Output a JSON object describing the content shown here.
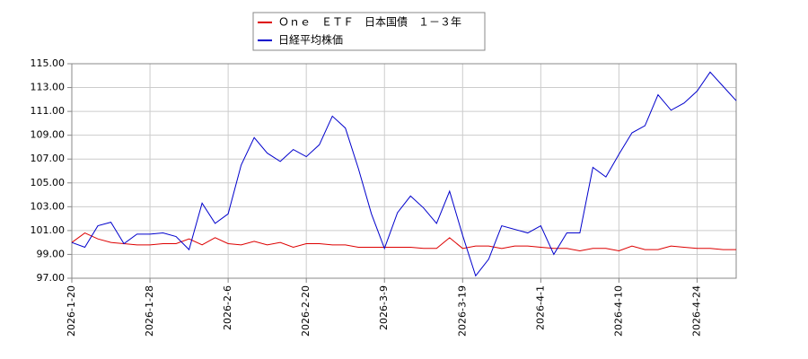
{
  "chart_data": {
    "type": "line",
    "categories": [
      "2026-1-20",
      null,
      null,
      null,
      null,
      null,
      "2026-1-28",
      null,
      null,
      null,
      null,
      null,
      "2026-2-6",
      null,
      null,
      null,
      null,
      null,
      "2026-2-20",
      null,
      null,
      null,
      null,
      null,
      "2026-3-9",
      null,
      null,
      null,
      null,
      null,
      "2026-3-19",
      null,
      null,
      null,
      null,
      null,
      "2026-4-1",
      null,
      null,
      null,
      null,
      null,
      "2026-4-10",
      null,
      null,
      null,
      null,
      null,
      "2026-4-24",
      null,
      null,
      null
    ],
    "series": [
      {
        "name": "Ｏｎｅ　ＥＴＦ　日本国債　１－３年",
        "color": "#dd0000",
        "values": [
          100.0,
          100.8,
          100.3,
          100.0,
          99.9,
          99.8,
          99.8,
          99.9,
          99.9,
          100.3,
          99.8,
          100.4,
          99.9,
          99.8,
          100.1,
          99.8,
          100.0,
          99.6,
          99.9,
          99.9,
          99.8,
          99.8,
          99.6,
          99.6,
          99.6,
          99.6,
          99.6,
          99.5,
          99.5,
          100.4,
          99.5,
          99.7,
          99.7,
          99.5,
          99.7,
          99.7,
          99.6,
          99.5,
          99.5,
          99.3,
          99.5,
          99.5,
          99.3,
          99.7,
          99.4,
          99.4,
          99.7,
          99.6,
          99.5,
          99.5,
          99.4,
          99.4
        ]
      },
      {
        "name": "日経平均株価",
        "color": "#0000cc",
        "values": [
          100.0,
          99.6,
          101.4,
          101.7,
          99.9,
          100.7,
          100.7,
          100.8,
          100.5,
          99.4,
          103.3,
          101.6,
          102.4,
          106.5,
          108.8,
          107.5,
          106.8,
          107.8,
          107.2,
          108.2,
          110.6,
          109.6,
          106.2,
          102.4,
          99.5,
          102.5,
          103.9,
          102.9,
          101.6,
          104.3,
          100.6,
          97.2,
          98.6,
          101.4,
          101.1,
          100.8,
          101.4,
          99.0,
          100.8,
          100.8,
          106.3,
          105.5,
          107.4,
          109.2,
          109.8,
          112.4,
          111.1,
          111.7,
          112.7,
          114.3,
          113.1,
          111.9
        ]
      }
    ],
    "ylim": [
      97,
      115
    ],
    "yticks": [
      {
        "value": 97,
        "label": "97.00"
      },
      {
        "value": 99,
        "label": "99.00"
      },
      {
        "value": 101,
        "label": "101.00"
      },
      {
        "value": 103,
        "label": "103.00"
      },
      {
        "value": 105,
        "label": "105.00"
      },
      {
        "value": 107,
        "label": "107.00"
      },
      {
        "value": 109,
        "label": "109.00"
      },
      {
        "value": 111,
        "label": "111.00"
      },
      {
        "value": 113,
        "label": "113.00"
      },
      {
        "value": 115,
        "label": "115.00"
      }
    ],
    "grid": true,
    "legend": "top"
  }
}
